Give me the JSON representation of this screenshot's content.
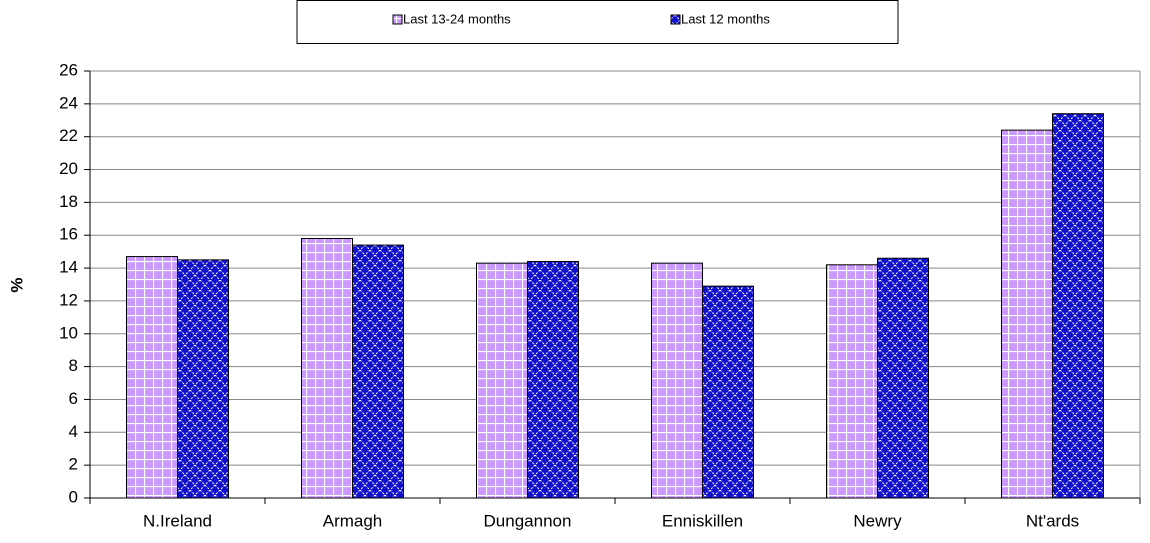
{
  "chart_data": {
    "type": "bar",
    "categories": [
      "N.Ireland",
      "Armagh",
      "Dungannon",
      "Enniskillen",
      "Newry",
      "Nt'ards"
    ],
    "series": [
      {
        "name": "Last 13-24 months",
        "color": "#cc99ff",
        "values": [
          14.7,
          15.8,
          14.3,
          14.3,
          14.2,
          22.4
        ]
      },
      {
        "name": "Last 12 months",
        "color": "#1010cc",
        "values": [
          14.5,
          15.4,
          14.4,
          12.9,
          14.6,
          23.4
        ]
      }
    ],
    "y_label": "%",
    "ylim": [
      0,
      26
    ],
    "yticks": [
      0,
      2,
      4,
      6,
      8,
      10,
      12,
      14,
      16,
      18,
      20,
      22,
      24,
      26
    ],
    "grid": true,
    "legend": "top"
  }
}
